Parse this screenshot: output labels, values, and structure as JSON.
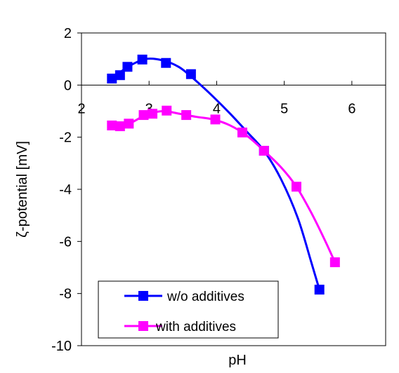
{
  "chart_data": {
    "type": "scatter",
    "title": "",
    "xlabel": "pH",
    "ylabel": "ζ-potential [mV]",
    "xlim": [
      2,
      6.5
    ],
    "ylim": [
      -10,
      2
    ],
    "xticks": [
      "2",
      "3",
      "4",
      "5",
      "6"
    ],
    "yticks": [
      "2",
      "0",
      "-2",
      "-4",
      "-6",
      "-8",
      "-10"
    ],
    "legend_position": "bottom-left",
    "series": [
      {
        "name": "w/o additives",
        "color": "#0000ff",
        "marker": "square",
        "x": [
          2.45,
          2.57,
          2.68,
          2.9,
          3.25,
          3.62,
          4.7,
          5.52
        ],
        "y": [
          0.25,
          0.38,
          0.7,
          0.98,
          0.85,
          0.42,
          -2.52,
          -7.85
        ],
        "curve_x": [
          2.45,
          2.7,
          2.95,
          3.2,
          3.45,
          3.7,
          3.95,
          4.2,
          4.45,
          4.7,
          4.95,
          5.2,
          5.4,
          5.52
        ],
        "curve_y": [
          0.25,
          0.72,
          1.0,
          0.95,
          0.68,
          0.15,
          -0.45,
          -1.1,
          -1.8,
          -2.52,
          -3.6,
          -5.1,
          -6.8,
          -7.85
        ]
      },
      {
        "name": "with additives",
        "color": "#ff00ff",
        "marker": "square",
        "x": [
          2.45,
          2.57,
          2.7,
          2.92,
          3.05,
          3.26,
          3.55,
          3.98,
          4.38,
          4.7,
          5.18,
          5.75
        ],
        "y": [
          -1.55,
          -1.58,
          -1.48,
          -1.15,
          -1.1,
          -0.98,
          -1.15,
          -1.32,
          -1.82,
          -2.52,
          -3.9,
          -6.8
        ],
        "curve_x": [
          2.45,
          2.7,
          2.95,
          3.2,
          3.45,
          3.7,
          3.95,
          4.2,
          4.45,
          4.7,
          4.95,
          5.18,
          5.4,
          5.6,
          5.75
        ],
        "curve_y": [
          -1.55,
          -1.48,
          -1.15,
          -1.0,
          -1.1,
          -1.22,
          -1.32,
          -1.55,
          -1.95,
          -2.52,
          -3.15,
          -3.9,
          -4.9,
          -5.95,
          -6.8
        ]
      }
    ]
  }
}
